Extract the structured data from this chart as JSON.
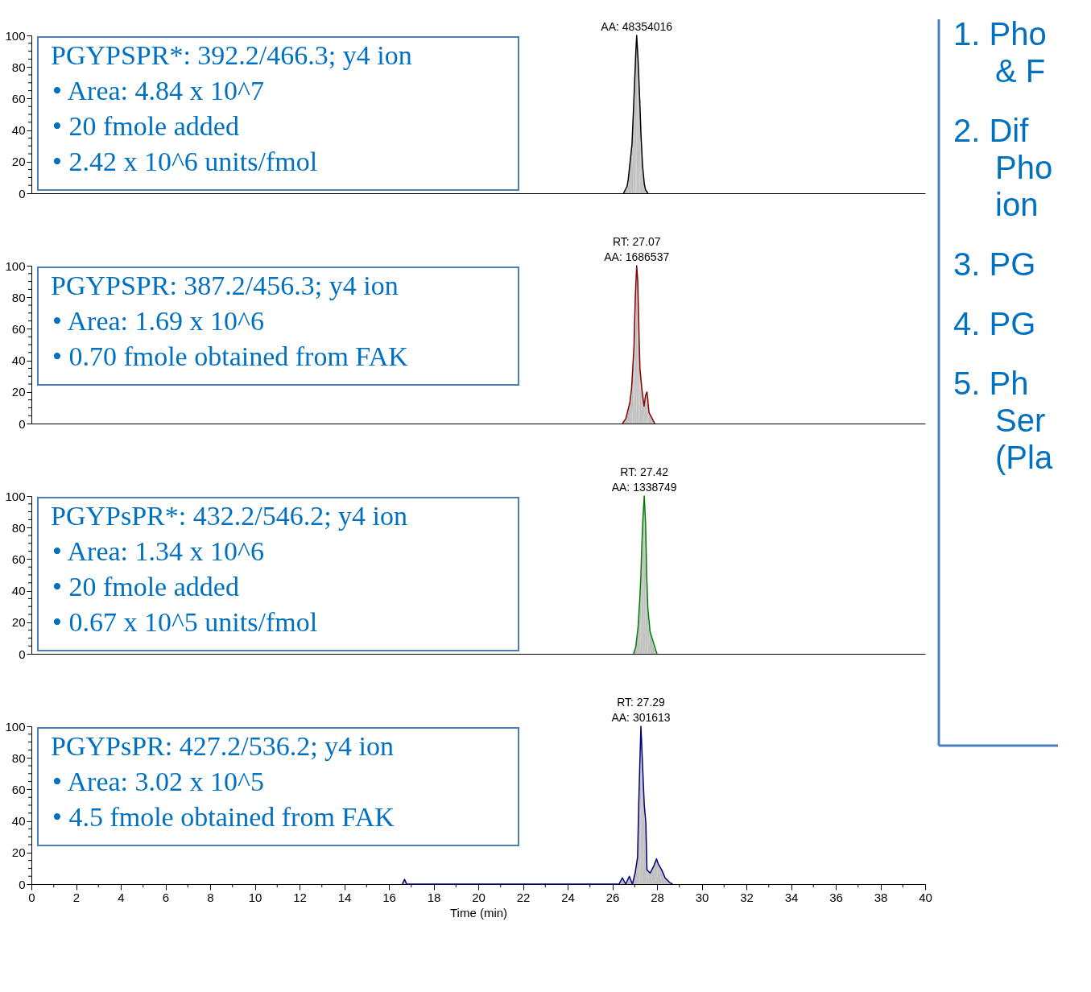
{
  "chart_data": [
    {
      "type": "area",
      "xlim": [
        0,
        40
      ],
      "ylim": [
        0,
        100
      ],
      "yticks": [
        0,
        {
          "value": 5,
          "label": null
        },
        {
          "value": 10,
          "label": null
        },
        {
          "value": 15,
          "label": null
        },
        20,
        {
          "value": 25,
          "label": null
        },
        {
          "value": 30,
          "label": null
        },
        {
          "value": 35,
          "label": null
        },
        40,
        {
          "value": 45,
          "label": null
        },
        {
          "value": 50,
          "label": null
        },
        {
          "value": 55,
          "label": null
        },
        60,
        {
          "value": 65,
          "label": null
        },
        {
          "value": 70,
          "label": null
        },
        {
          "value": 75,
          "label": null
        },
        80,
        {
          "value": 85,
          "label": null
        },
        {
          "value": 90,
          "label": null
        },
        {
          "value": 95,
          "label": null
        },
        100
      ],
      "tick_labels": "y",
      "grid": false,
      "series": [
        {
          "color": "#000000",
          "x": [
            26.5,
            26.66,
            26.71,
            26.88,
            26.95,
            27.0,
            27.05,
            27.09,
            27.15,
            27.23,
            27.28,
            27.35,
            27.43,
            27.49,
            27.6
          ],
          "values": [
            0,
            4.4,
            8.6,
            31,
            54,
            71.5,
            89,
            100,
            85,
            58,
            38,
            18,
            6,
            2,
            0
          ]
        }
      ],
      "title": "PGYPSPR*: 392.2/466.3; y4 ion",
      "subtitle": [
        "• Area: 4.84 x 10^7",
        "• 20 fmole added",
        "• 2.42 x 10^6 units/fmol"
      ],
      "annotations": [
        "AA: 48354016"
      ]
    },
    {
      "type": "area",
      "xlim": [
        0,
        40
      ],
      "ylim": [
        0,
        100
      ],
      "yticks": [
        0,
        {
          "value": 5,
          "label": null
        },
        {
          "value": 10,
          "label": null
        },
        {
          "value": 15,
          "label": null
        },
        20,
        {
          "value": 25,
          "label": null
        },
        {
          "value": 30,
          "label": null
        },
        {
          "value": 35,
          "label": null
        },
        40,
        {
          "value": 45,
          "label": null
        },
        {
          "value": 50,
          "label": null
        },
        {
          "value": 55,
          "label": null
        },
        60,
        {
          "value": 65,
          "label": null
        },
        {
          "value": 70,
          "label": null
        },
        {
          "value": 75,
          "label": null
        },
        80,
        {
          "value": 85,
          "label": null
        },
        {
          "value": 90,
          "label": null
        },
        {
          "value": 95,
          "label": null
        },
        100
      ],
      "tick_labels": "y",
      "grid": false,
      "series": [
        {
          "color": "#8b0000",
          "x": [
            26.45,
            26.6,
            26.78,
            26.86,
            26.91,
            26.97,
            26.99,
            27.03,
            27.09,
            27.14,
            27.2,
            27.24,
            27.33,
            27.42,
            27.49,
            27.55,
            27.59,
            27.64,
            27.79,
            27.9
          ],
          "values": [
            0,
            3,
            13,
            22,
            34,
            49,
            61,
            81,
            100,
            90,
            53,
            34,
            21,
            11,
            18,
            20,
            15,
            7,
            3,
            0
          ]
        }
      ],
      "title": "PGYPSPR: 387.2/456.3; y4 ion",
      "subtitle": [
        "• Area: 1.69 x 10^6",
        "• 0.70 fmole obtained from FAK"
      ],
      "annotations": [
        "RT: 27.07",
        "AA: 1686537"
      ]
    },
    {
      "type": "area",
      "xlim": [
        0,
        40
      ],
      "ylim": [
        0,
        100
      ],
      "yticks": [
        0,
        {
          "value": 5,
          "label": null
        },
        {
          "value": 10,
          "label": null
        },
        {
          "value": 15,
          "label": null
        },
        20,
        {
          "value": 25,
          "label": null
        },
        {
          "value": 30,
          "label": null
        },
        {
          "value": 35,
          "label": null
        },
        40,
        {
          "value": 45,
          "label": null
        },
        {
          "value": 50,
          "label": null
        },
        {
          "value": 55,
          "label": null
        },
        60,
        {
          "value": 65,
          "label": null
        },
        {
          "value": 70,
          "label": null
        },
        {
          "value": 75,
          "label": null
        },
        80,
        {
          "value": 85,
          "label": null
        },
        {
          "value": 90,
          "label": null
        },
        {
          "value": 95,
          "label": null
        },
        100
      ],
      "tick_labels": "y",
      "grid": false,
      "series": [
        {
          "color": "#008000",
          "x": [
            26.95,
            27.05,
            27.15,
            27.23,
            27.28,
            27.32,
            27.37,
            27.43,
            27.49,
            27.54,
            27.59,
            27.69,
            27.93,
            28.0
          ],
          "values": [
            0,
            4.5,
            16.6,
            35,
            50,
            69,
            86,
            100,
            82,
            49,
            29,
            14,
            3,
            0
          ]
        }
      ],
      "title": "PGYPsPR*: 432.2/546.2; y4 ion",
      "subtitle": [
        "• Area: 1.34 x 10^6",
        "• 20 fmole added",
        "• 0.67 x 10^5 units/fmol"
      ],
      "annotations": [
        "RT: 27.42",
        "AA: 1338749"
      ]
    },
    {
      "type": "area",
      "xlim": [
        0,
        40
      ],
      "ylim": [
        0,
        100
      ],
      "xticks": [
        0,
        {
          "value": 1,
          "label": null
        },
        2,
        {
          "value": 3,
          "label": null
        },
        4,
        {
          "value": 5,
          "label": null
        },
        6,
        {
          "value": 7,
          "label": null
        },
        8,
        {
          "value": 9,
          "label": null
        },
        10,
        {
          "value": 11,
          "label": null
        },
        12,
        {
          "value": 13,
          "label": null
        },
        14,
        {
          "value": 15,
          "label": null
        },
        16,
        {
          "value": 17,
          "label": null
        },
        18,
        {
          "value": 19,
          "label": null
        },
        20,
        {
          "value": 21,
          "label": null
        },
        22,
        {
          "value": 23,
          "label": null
        },
        24,
        {
          "value": 25,
          "label": null
        },
        26,
        {
          "value": 27,
          "label": null
        },
        28,
        {
          "value": 29,
          "label": null
        },
        30,
        {
          "value": 31,
          "label": null
        },
        32,
        {
          "value": 33,
          "label": null
        },
        34,
        {
          "value": 35,
          "label": null
        },
        36,
        {
          "value": 37,
          "label": null
        },
        38,
        {
          "value": 39,
          "label": null
        },
        40
      ],
      "yticks": [
        0,
        {
          "value": 5,
          "label": null
        },
        {
          "value": 10,
          "label": null
        },
        {
          "value": 15,
          "label": null
        },
        20,
        {
          "value": 25,
          "label": null
        },
        {
          "value": 30,
          "label": null
        },
        {
          "value": 35,
          "label": null
        },
        40,
        {
          "value": 45,
          "label": null
        },
        {
          "value": 50,
          "label": null
        },
        {
          "value": 55,
          "label": null
        },
        60,
        {
          "value": 65,
          "label": null
        },
        {
          "value": 70,
          "label": null
        },
        {
          "value": 75,
          "label": null
        },
        80,
        {
          "value": 85,
          "label": null
        },
        {
          "value": 90,
          "label": null
        },
        {
          "value": 95,
          "label": null
        },
        100
      ],
      "xlabel": "Time (min)",
      "grid": false,
      "series": [
        {
          "color": "#000080",
          "x": [
            16.6,
            16.7,
            16.8,
            26.3,
            26.45,
            26.6,
            26.76,
            26.9,
            27.02,
            27.13,
            27.18,
            27.23,
            27.28,
            27.33,
            27.43,
            27.5,
            27.55,
            27.69,
            27.84,
            27.98,
            28.05,
            28.21,
            28.36,
            28.57,
            28.7
          ],
          "values": [
            0,
            3,
            0,
            0,
            4,
            0,
            5,
            0,
            7,
            17,
            50,
            76,
            100,
            83,
            50,
            39,
            9,
            7,
            11,
            16,
            13,
            9,
            4,
            1,
            0
          ]
        }
      ],
      "title": "PGYPsPR: 427.2/536.2; y4 ion",
      "subtitle": [
        "• Area: 3.02 x 10^5",
        "• 4.5 fmole obtained from FAK"
      ],
      "annotations": [
        "RT: 27.29",
        "AA: 301613"
      ]
    },
    {
      "type": "other",
      "annotations": [
        "1. Pho\n& F",
        "2. Dif\nPho\nion",
        "3. PG",
        "4. PG",
        "5. Ph\nSer\n(Pla"
      ]
    }
  ]
}
